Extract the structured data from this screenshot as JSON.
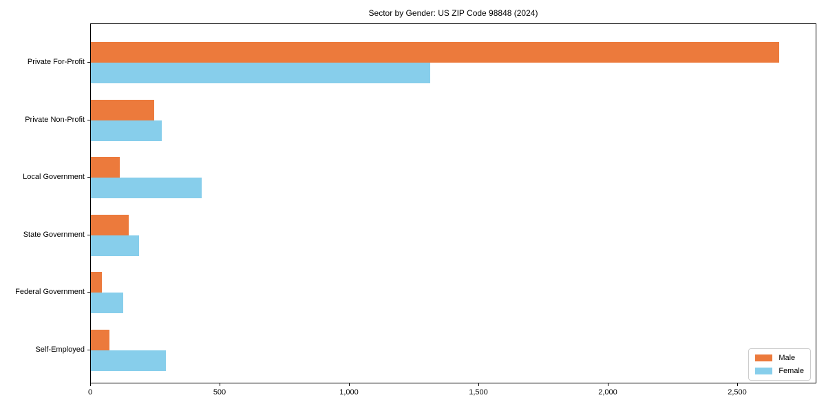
{
  "chart_data": {
    "type": "bar",
    "orientation": "horizontal",
    "title": "Sector by Gender: US ZIP Code 98848 (2024)",
    "categories": [
      "Private For-Profit",
      "Private Non-Profit",
      "Local Government",
      "State Government",
      "Federal Government",
      "Self-Employed"
    ],
    "series": [
      {
        "name": "Male",
        "color": "#EC7A3C",
        "values": [
          2660,
          244,
          111,
          146,
          42,
          72
        ]
      },
      {
        "name": "Female",
        "color": "#87CEEB",
        "values": [
          1312,
          273,
          427,
          186,
          125,
          289
        ]
      }
    ],
    "xlabel": "",
    "ylabel": "",
    "xlim": [
      0,
      2800
    ],
    "x_ticks": [
      0,
      500,
      1000,
      1500,
      2000,
      2500
    ],
    "x_tick_labels": [
      "0",
      "500",
      "1,000",
      "1,500",
      "2,000",
      "2,500"
    ],
    "grid": false,
    "legend": {
      "position": "lower right",
      "entries": [
        "Male",
        "Female"
      ]
    },
    "colors": {
      "spine": "#000000",
      "background": "#ffffff"
    }
  }
}
